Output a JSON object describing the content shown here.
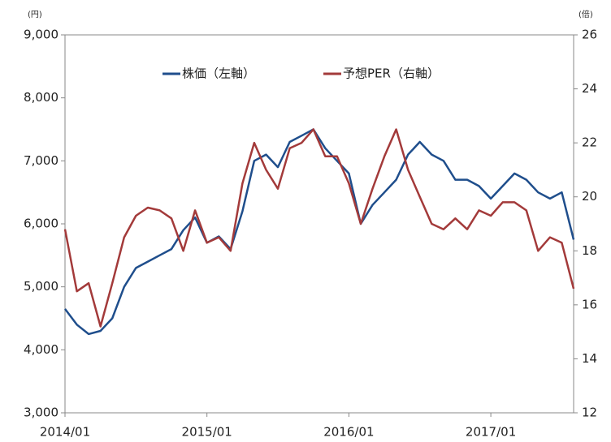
{
  "chart_data": {
    "type": "line",
    "y_unit": "(円)",
    "y2_unit": "(倍)",
    "x": [
      "2014/01",
      "2014/02",
      "2014/03",
      "2014/04",
      "2014/05",
      "2014/06",
      "2014/07",
      "2014/08",
      "2014/09",
      "2014/10",
      "2014/11",
      "2014/12",
      "2015/01",
      "2015/02",
      "2015/03",
      "2015/04",
      "2015/05",
      "2015/06",
      "2015/07",
      "2015/08",
      "2015/09",
      "2015/10",
      "2015/11",
      "2015/12",
      "2016/01",
      "2016/02",
      "2016/03",
      "2016/04",
      "2016/05",
      "2016/06",
      "2016/07",
      "2016/08",
      "2016/09",
      "2016/10",
      "2016/11",
      "2016/12",
      "2017/01",
      "2017/02",
      "2017/03",
      "2017/04",
      "2017/05",
      "2017/06",
      "2017/07",
      "2017/08"
    ],
    "xticks": [
      "2014/01",
      "2015/01",
      "2016/01",
      "2017/01"
    ],
    "series": [
      {
        "name": "株価（左軸）",
        "color": "#1f4e8c",
        "values": [
          4650,
          4400,
          4250,
          4300,
          4500,
          5000,
          5300,
          5400,
          5500,
          5600,
          5900,
          6100,
          5700,
          5800,
          5600,
          6200,
          7000,
          7100,
          6900,
          7300,
          7400,
          7500,
          7200,
          7000,
          6800,
          6000,
          6300,
          6500,
          6700,
          7100,
          7300,
          7100,
          7000,
          6700,
          6700,
          6600,
          6400,
          6600,
          6800,
          6700,
          6500,
          6400,
          6500,
          5750
        ]
      },
      {
        "name": "予想PER（右軸）",
        "color": "#a33a3a",
        "axis": "y2",
        "values": [
          18.8,
          16.5,
          16.8,
          15.2,
          16.8,
          18.5,
          19.3,
          19.6,
          19.5,
          19.2,
          18.0,
          19.5,
          18.3,
          18.5,
          18.0,
          20.5,
          22.0,
          21.0,
          20.3,
          21.8,
          22.0,
          22.5,
          21.5,
          21.5,
          20.5,
          19.0,
          20.3,
          21.5,
          22.5,
          21.0,
          20.0,
          19.0,
          18.8,
          19.2,
          18.8,
          19.5,
          19.3,
          19.8,
          19.8,
          19.5,
          18.0,
          18.5,
          18.3,
          16.6
        ]
      }
    ],
    "ylim": [
      3000,
      9000
    ],
    "yticks": [
      {
        "value": 3000,
        "label": "3,000"
      },
      {
        "value": 4000,
        "label": "4,000"
      },
      {
        "value": 5000,
        "label": "5,000"
      },
      {
        "value": 6000,
        "label": "6,000"
      },
      {
        "value": 7000,
        "label": "7,000"
      },
      {
        "value": 8000,
        "label": "8,000"
      },
      {
        "value": 9000,
        "label": "9,000"
      }
    ],
    "y2lim": [
      12,
      26
    ],
    "y2ticks": [
      12,
      14,
      16,
      18,
      20,
      22,
      24,
      26
    ],
    "legend": "top"
  }
}
